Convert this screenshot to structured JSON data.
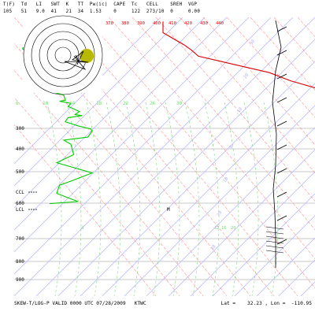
{
  "header": {
    "labels": [
      "T(F)",
      "Td",
      "LI",
      "SWT",
      "K",
      "TT",
      "Pw(ic)",
      "CAPE",
      "Tc",
      "CELL",
      "SREH",
      "VGP"
    ],
    "values": [
      "105",
      "51",
      "9.0",
      "41",
      "21",
      "34",
      "1.53",
      "0",
      "122",
      "273/10",
      "0",
      "0.00"
    ]
  },
  "footer": {
    "title": "SKEW-T/LOG-P VALID 0000 UTC 07/28/2009   KTWC",
    "latlon": "Lat =    32.23 , Lon =  -110.95"
  },
  "colors": {
    "temperature": "#e00000",
    "dewpoint": "#00cc00",
    "isotherm": "#b0b0ff",
    "dry_adiabat": "#ff9090",
    "moist_adiabat": "#7fd67f",
    "isobar": "#b8b8b8",
    "hodograph": "#000000",
    "storm_motion_marker": "#b8b800"
  },
  "chart_data": {
    "type": "line",
    "title": "SKEW-T/LOG-P VALID 0000 UTC 07/28/2009",
    "station": "KTWC",
    "pressure_levels": [
      "300",
      "400",
      "500",
      "600",
      "700",
      "800",
      "900"
    ],
    "isotherm_labels_top": [
      "370",
      "380",
      "390",
      "400",
      "410",
      "420",
      "430",
      "440"
    ],
    "isotherm_labels_mid": [
      "6",
      "10",
      "14",
      "18",
      "22",
      "26",
      "30"
    ],
    "isotherm_labels_right": [
      "-30",
      "-20",
      "-10",
      "0",
      "10",
      "20",
      "30"
    ],
    "mixing_ratio_labels": [
      "4",
      "12",
      "16",
      "20"
    ],
    "level_labels": [
      "CCL",
      "LCL"
    ],
    "parcel_marker": "M",
    "series": [
      {
        "name": "Temperature",
        "values": [
          [
            0.2,
            10.5
          ],
          [
            0.75,
            10.5
          ],
          [
            1.35,
            12.0
          ],
          [
            1.6,
            12.5
          ],
          [
            1.9,
            13.0
          ],
          [
            2.3,
            15.5
          ],
          [
            2.7,
            18.0
          ],
          [
            3.1,
            19.5
          ],
          [
            3.5,
            21.5
          ],
          [
            4.2,
            22.0
          ],
          [
            4.6,
            23.0
          ],
          [
            5.1,
            24.0
          ],
          [
            5.5,
            25.0
          ],
          [
            6.1,
            26.0
          ],
          [
            6.7,
            27.0
          ],
          [
            7.1,
            28.0
          ],
          [
            7.6,
            31.0
          ],
          [
            8.1,
            32.5
          ],
          [
            8.5,
            33.5
          ],
          [
            9.1,
            35.0
          ]
        ]
      },
      {
        "name": "Dewpoint",
        "values": [
          [
            0.2,
            4.5
          ],
          [
            0.75,
            1.5
          ],
          [
            1.35,
            1.0
          ],
          [
            1.5,
            0.6
          ],
          [
            1.55,
            0.6
          ],
          [
            1.75,
            1.3
          ],
          [
            2.1,
            1.5
          ],
          [
            2.5,
            1.5
          ],
          [
            3.05,
            1.4
          ],
          [
            3.35,
            1.4
          ],
          [
            3.45,
            1.5
          ],
          [
            3.6,
            2.5
          ],
          [
            3.8,
            3.5
          ],
          [
            4.05,
            3.6
          ],
          [
            4.1,
            3.2
          ],
          [
            4.2,
            4.0
          ],
          [
            4.35,
            3.8
          ],
          [
            4.6,
            4.6
          ],
          [
            4.75,
            4.3
          ],
          [
            4.8,
            4.8
          ],
          [
            4.9,
            3.8
          ],
          [
            5.1,
            3.6
          ],
          [
            5.3,
            4.5
          ],
          [
            5.45,
            5.4
          ],
          [
            5.55,
            5.5
          ],
          [
            5.85,
            5.2
          ],
          [
            6.0,
            3.5
          ],
          [
            6.2,
            4.0
          ],
          [
            6.7,
            4.2
          ],
          [
            7.1,
            3.0
          ],
          [
            7.6,
            5.5
          ],
          [
            8.0,
            4.0
          ],
          [
            8.2,
            3.2
          ],
          [
            8.6,
            3.0
          ],
          [
            9.0,
            4.5
          ],
          [
            9.1,
            2.5
          ]
        ]
      }
    ],
    "hodograph": {
      "rings": [
        10,
        20,
        30,
        40,
        50
      ],
      "wind_trace": [
        [
          0,
          0
        ],
        [
          4,
          7
        ],
        [
          2,
          12
        ],
        [
          10,
          -5
        ],
        [
          -4,
          6
        ],
        [
          16,
          9
        ],
        [
          -14,
          8
        ],
        [
          12,
          18
        ],
        [
          -2,
          1
        ]
      ]
    }
  }
}
